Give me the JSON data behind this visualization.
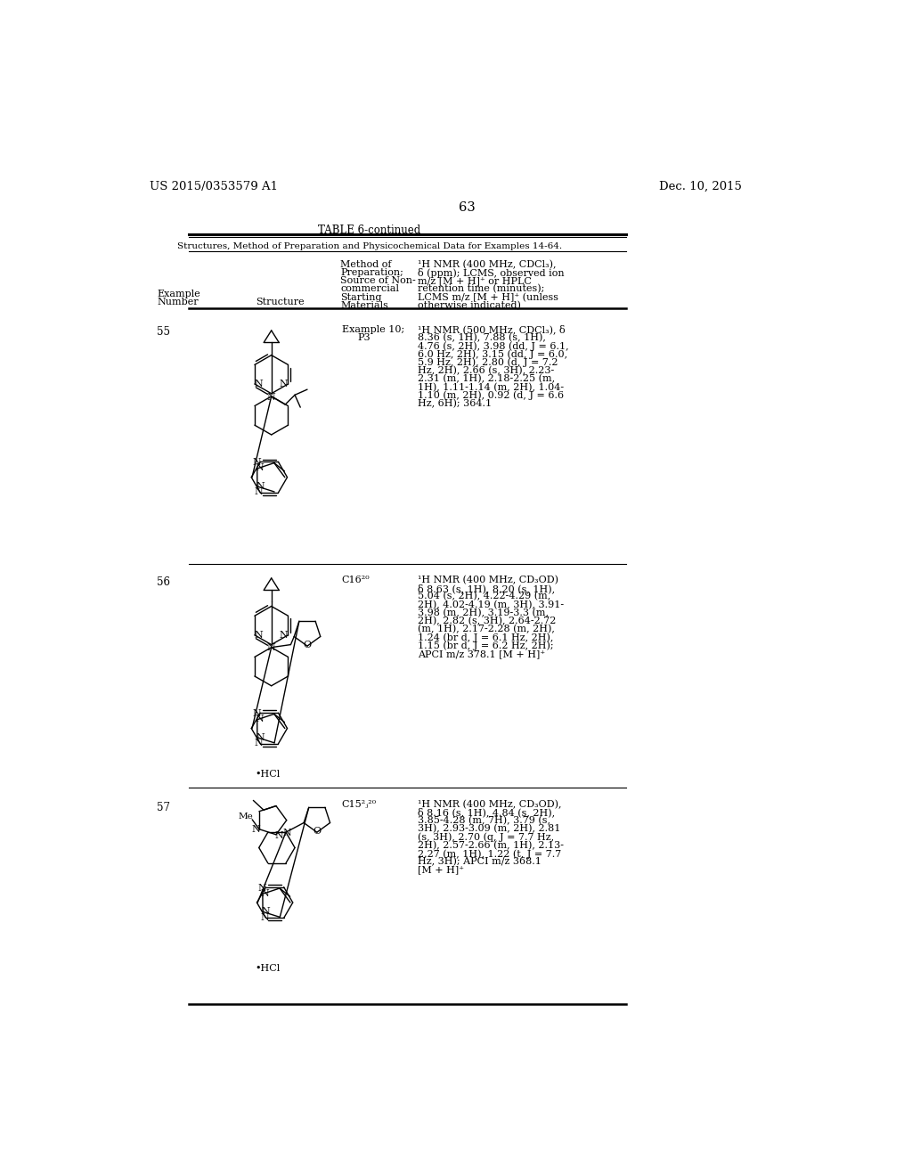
{
  "background_color": "#ffffff",
  "header_left": "US 2015/0353579 A1",
  "header_right": "Dec. 10, 2015",
  "page_number": "63",
  "table_title": "TABLE 6-continued",
  "table_subtitle": "Structures, Method of Preparation and Physicochemical Data for Examples 14-64.",
  "row55_num": "55",
  "row55_method": "Example 10;\n    P3",
  "row55_nmr_lines": [
    "¹H NMR (500 MHz, CDCl₃), δ",
    "8.36 (s, 1H), 7.88 (s, 1H),",
    "4.76 (s, 2H), 3.98 (dd, J = 6.1,",
    "6.0 Hz, 2H), 3.15 (dd, J = 6.0,",
    "5.9 Hz, 2H), 2.80 (d, J = 7.2",
    "Hz, 2H), 2.66 (s, 3H), 2.23-",
    "2.31 (m, 1H), 2.18-2.25 (m,",
    "1H), 1.11-1.14 (m, 2H), 1.04-",
    "1.10 (m, 2H), 0.92 (d, J = 6.6",
    "Hz, 6H); 364.1"
  ],
  "row56_num": "56",
  "row56_method": "C16²⁰",
  "row56_nmr_lines": [
    "¹H NMR (400 MHz, CD₃OD)",
    "δ 8.63 (s, 1H), 8.20 (s, 1H),",
    "5.04 (s, 2H), 4.22-4.29 (m,",
    "2H), 4.02-4.19 (m, 3H), 3.91-",
    "3.98 (m, 2H), 3.19-3.3 (m,",
    "2H), 2.82 (s, 3H), 2.64-2.72",
    "(m, 1H), 2.17-2.28 (m, 2H),",
    "1.24 (br d, J = 6.1 Hz, 2H),",
    "1.15 (br d, J = 6.2 Hz, 2H);",
    "APCI m/z 378.1 [M + H]⁺"
  ],
  "row57_num": "57",
  "row57_method": "C15²ⱼ²⁰",
  "row57_nmr_lines": [
    "¹H NMR (400 MHz, CD₃OD),",
    "δ 8.16 (s, 1H), 4.84 (s, 2H),",
    "3.85-4.28 (m, 7H), 3.79 (s,",
    "3H), 2.93-3.09 (m, 2H), 2.81",
    "(s, 3H), 2.70 (q, J = 7.7 Hz,",
    "2H), 2.57-2.66 (m, 1H), 2.13-",
    "2.27 (m, 1H), 1.22 (t, J = 7.7",
    "Hz, 3H); APCI m/z 368.1",
    "[M + H]⁺"
  ]
}
